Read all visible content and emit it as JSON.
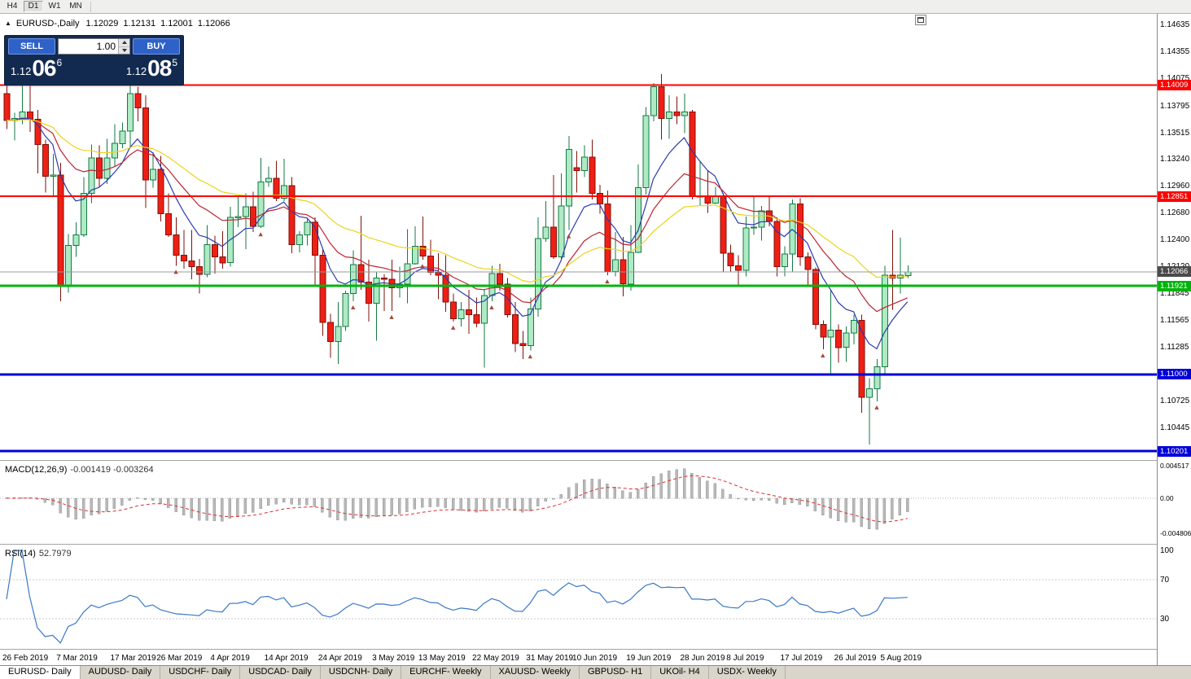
{
  "toolbar": {
    "timeframes": [
      {
        "label": "H4",
        "active": false
      },
      {
        "label": "D1",
        "active": true
      },
      {
        "label": "W1",
        "active": false
      },
      {
        "label": "MN",
        "active": false
      }
    ]
  },
  "chart_header": {
    "collapse_icon": "▲",
    "symbol_period": "EURUSD-,Daily",
    "open": "1.12029",
    "high": "1.12131",
    "low": "1.12001",
    "close": "1.12066"
  },
  "trade_panel": {
    "sell_label": "SELL",
    "buy_label": "BUY",
    "volume": "1.00",
    "sell_price": {
      "prefix": "1.12",
      "big": "06",
      "sup": "6"
    },
    "buy_price": {
      "prefix": "1.12",
      "big": "08",
      "sup": "5"
    }
  },
  "chart_data": {
    "type": "candlestick",
    "symbol": "EURUSD-",
    "timeframe": "Daily",
    "price_range": {
      "top": 1.1457,
      "bottom": 1.1011
    },
    "colors": {
      "bull_fill": "#aeeac4",
      "bull_stroke": "#157a45",
      "bear_fill": "#f01f14",
      "bear_stroke": "#7e120b",
      "ma_fast": "#2b3aae",
      "ma_mid": "#bb2433",
      "ma_slow": "#ecd31b",
      "resistance": "#ff0000",
      "support_green": "#00b40c",
      "support_blue": "#0000d8",
      "bid_line": "#9a9a9a",
      "bid_box": "#4a4a4a",
      "macd_hist": "#b8b8b8",
      "macd_signal": "#e03030",
      "rsi_line": "#3a78c9"
    },
    "moving_averages": [
      {
        "period": 8,
        "type": "ema",
        "color_key": "ma_fast"
      },
      {
        "period": 17,
        "type": "ema",
        "color_key": "ma_mid"
      },
      {
        "period": 34,
        "type": "ema",
        "color_key": "ma_slow"
      }
    ],
    "levels": [
      {
        "value": 1.14009,
        "label": "1.14009",
        "color": "#ff0000",
        "width": 2
      },
      {
        "value": 1.12851,
        "label": "1.12851",
        "color": "#ff0000",
        "width": 2
      },
      {
        "value": 1.11921,
        "label": "1.11921",
        "color": "#00b40c",
        "width": 3
      },
      {
        "value": 1.11,
        "label": "1.11000",
        "color": "#0000d8",
        "width": 3
      },
      {
        "value": 1.10201,
        "label": "1.10201",
        "color": "#0000d8",
        "width": 3
      }
    ],
    "current_price": {
      "value": 1.12066,
      "label": "1.12066"
    },
    "price_axis_ticks": [
      "1.14635",
      "1.14355",
      "1.14075",
      "1.13795",
      "1.13515",
      "1.13240",
      "1.12960",
      "1.12680",
      "1.12400",
      "1.12120",
      "1.11845",
      "1.11565",
      "1.11285",
      "1.10725",
      "1.10445"
    ],
    "x_axis_labels": [
      {
        "text": "26 Feb 2019",
        "index": 0
      },
      {
        "text": "7 Mar 2019",
        "index": 7
      },
      {
        "text": "17 Mar 2019",
        "index": 14
      },
      {
        "text": "26 Mar 2019",
        "index": 20
      },
      {
        "text": "4 Apr 2019",
        "index": 27
      },
      {
        "text": "14 Apr 2019",
        "index": 34
      },
      {
        "text": "24 Apr 2019",
        "index": 41
      },
      {
        "text": "3 May 2019",
        "index": 48
      },
      {
        "text": "13 May 2019",
        "index": 54
      },
      {
        "text": "22 May 2019",
        "index": 61
      },
      {
        "text": "31 May 2019",
        "index": 68
      },
      {
        "text": "10 Jun 2019",
        "index": 74
      },
      {
        "text": "19 Jun 2019",
        "index": 81
      },
      {
        "text": "28 Jun 2019",
        "index": 88
      },
      {
        "text": "8 Jul 2019",
        "index": 94
      },
      {
        "text": "17 Jul 2019",
        "index": 101
      },
      {
        "text": "26 Jul 2019",
        "index": 108
      },
      {
        "text": "5 Aug 2019",
        "index": 114
      }
    ],
    "markers": [
      22,
      33,
      45,
      50,
      54,
      58,
      63,
      68,
      73,
      78,
      106,
      113
    ],
    "candles": [
      [
        1.1392,
        1.1403,
        1.1355,
        1.1364
      ],
      [
        1.1364,
        1.1372,
        1.1343,
        1.1366
      ],
      [
        1.1366,
        1.1409,
        1.136,
        1.1373
      ],
      [
        1.1373,
        1.1408,
        1.1352,
        1.1365
      ],
      [
        1.1365,
        1.1375,
        1.1309,
        1.1339
      ],
      [
        1.1339,
        1.1344,
        1.1289,
        1.1306
      ],
      [
        1.1306,
        1.1329,
        1.1285,
        1.1307
      ],
      [
        1.1307,
        1.132,
        1.1176,
        1.1193
      ],
      [
        1.1193,
        1.1246,
        1.1185,
        1.1234
      ],
      [
        1.1234,
        1.1258,
        1.1222,
        1.1245
      ],
      [
        1.1245,
        1.1305,
        1.1243,
        1.1288
      ],
      [
        1.1288,
        1.1339,
        1.1278,
        1.1325
      ],
      [
        1.1325,
        1.1338,
        1.1294,
        1.1304
      ],
      [
        1.1304,
        1.1345,
        1.1298,
        1.1325
      ],
      [
        1.1325,
        1.136,
        1.1316,
        1.134
      ],
      [
        1.134,
        1.1362,
        1.1335,
        1.1353
      ],
      [
        1.1353,
        1.1403,
        1.1335,
        1.1392
      ],
      [
        1.1392,
        1.1399,
        1.1363,
        1.1377
      ],
      [
        1.1377,
        1.139,
        1.1273,
        1.1302
      ],
      [
        1.1302,
        1.1331,
        1.1294,
        1.1313
      ],
      [
        1.1313,
        1.1327,
        1.1259,
        1.1267
      ],
      [
        1.1267,
        1.1288,
        1.1243,
        1.1245
      ],
      [
        1.1245,
        1.1263,
        1.1213,
        1.1224
      ],
      [
        1.1224,
        1.125,
        1.121,
        1.1218
      ],
      [
        1.1218,
        1.125,
        1.1199,
        1.1212
      ],
      [
        1.1212,
        1.122,
        1.1184,
        1.1204
      ],
      [
        1.1204,
        1.1255,
        1.1201,
        1.1235
      ],
      [
        1.1235,
        1.1244,
        1.1205,
        1.1222
      ],
      [
        1.1222,
        1.1249,
        1.121,
        1.1216
      ],
      [
        1.1216,
        1.1274,
        1.1212,
        1.1263
      ],
      [
        1.1263,
        1.1285,
        1.1253,
        1.1264
      ],
      [
        1.1264,
        1.1288,
        1.123,
        1.1274
      ],
      [
        1.1274,
        1.129,
        1.1248,
        1.1254
      ],
      [
        1.1254,
        1.1325,
        1.1252,
        1.13
      ],
      [
        1.13,
        1.1316,
        1.1295,
        1.1304
      ],
      [
        1.1304,
        1.1322,
        1.128,
        1.1283
      ],
      [
        1.1283,
        1.1324,
        1.128,
        1.1296
      ],
      [
        1.1296,
        1.1305,
        1.1226,
        1.1235
      ],
      [
        1.1235,
        1.1249,
        1.1227,
        1.1245
      ],
      [
        1.1245,
        1.1262,
        1.1234,
        1.1258
      ],
      [
        1.1258,
        1.1263,
        1.1192,
        1.1224
      ],
      [
        1.1224,
        1.123,
        1.114,
        1.1154
      ],
      [
        1.1154,
        1.1163,
        1.1117,
        1.1134
      ],
      [
        1.1134,
        1.1175,
        1.1111,
        1.115
      ],
      [
        1.115,
        1.1187,
        1.1145,
        1.1184
      ],
      [
        1.1184,
        1.1229,
        1.1176,
        1.1214
      ],
      [
        1.1214,
        1.1265,
        1.1188,
        1.1196
      ],
      [
        1.1196,
        1.1219,
        1.1155,
        1.1174
      ],
      [
        1.1174,
        1.1206,
        1.1135,
        1.12
      ],
      [
        1.12,
        1.1204,
        1.1166,
        1.1199
      ],
      [
        1.1199,
        1.1219,
        1.1166,
        1.119
      ],
      [
        1.119,
        1.1212,
        1.118,
        1.1194
      ],
      [
        1.1194,
        1.1251,
        1.1174,
        1.1215
      ],
      [
        1.1215,
        1.1254,
        1.1214,
        1.1233
      ],
      [
        1.1233,
        1.1264,
        1.1219,
        1.1223
      ],
      [
        1.1223,
        1.124,
        1.1203,
        1.1206
      ],
      [
        1.1206,
        1.1226,
        1.1178,
        1.1203
      ],
      [
        1.1203,
        1.1224,
        1.1165,
        1.1175
      ],
      [
        1.1175,
        1.1184,
        1.1155,
        1.1158
      ],
      [
        1.1158,
        1.1175,
        1.115,
        1.1167
      ],
      [
        1.1167,
        1.1188,
        1.1142,
        1.1162
      ],
      [
        1.1162,
        1.118,
        1.1149,
        1.1153
      ],
      [
        1.1153,
        1.1188,
        1.1107,
        1.1182
      ],
      [
        1.1182,
        1.1213,
        1.1176,
        1.1205
      ],
      [
        1.1205,
        1.1215,
        1.1187,
        1.1194
      ],
      [
        1.1194,
        1.12,
        1.1159,
        1.1162
      ],
      [
        1.1162,
        1.1175,
        1.1123,
        1.1132
      ],
      [
        1.1132,
        1.1145,
        1.1116,
        1.113
      ],
      [
        1.113,
        1.118,
        1.1125,
        1.1168
      ],
      [
        1.1168,
        1.1263,
        1.116,
        1.1241
      ],
      [
        1.1241,
        1.128,
        1.1238,
        1.1253
      ],
      [
        1.1253,
        1.1307,
        1.122,
        1.1222
      ],
      [
        1.1222,
        1.1309,
        1.122,
        1.1275
      ],
      [
        1.1275,
        1.1348,
        1.125,
        1.1334
      ],
      [
        1.1315,
        1.1332,
        1.1289,
        1.1312
      ],
      [
        1.1312,
        1.1338,
        1.1305,
        1.1326
      ],
      [
        1.1326,
        1.1344,
        1.1282,
        1.1288
      ],
      [
        1.1288,
        1.1297,
        1.1267,
        1.1277
      ],
      [
        1.1277,
        1.1291,
        1.1203,
        1.1207
      ],
      [
        1.1207,
        1.1248,
        1.1202,
        1.1219
      ],
      [
        1.1219,
        1.1243,
        1.1181,
        1.1194
      ],
      [
        1.1194,
        1.1255,
        1.1187,
        1.1227
      ],
      [
        1.1227,
        1.1318,
        1.1226,
        1.1294
      ],
      [
        1.1294,
        1.1378,
        1.1287,
        1.1369
      ],
      [
        1.1369,
        1.1403,
        1.1363,
        1.1399
      ],
      [
        1.1399,
        1.1412,
        1.1344,
        1.1366
      ],
      [
        1.1366,
        1.139,
        1.1345,
        1.1373
      ],
      [
        1.1373,
        1.1389,
        1.136,
        1.1369
      ],
      [
        1.1369,
        1.1392,
        1.1351,
        1.1373
      ],
      [
        1.1373,
        1.1375,
        1.1282,
        1.1285
      ],
      [
        1.1285,
        1.1322,
        1.1275,
        1.1285
      ],
      [
        1.1285,
        1.1312,
        1.1268,
        1.1278
      ],
      [
        1.1278,
        1.1295,
        1.1277,
        1.1285
      ],
      [
        1.1285,
        1.1288,
        1.1207,
        1.1226
      ],
      [
        1.1226,
        1.1235,
        1.1206,
        1.1213
      ],
      [
        1.1213,
        1.1224,
        1.1193,
        1.1208
      ],
      [
        1.1208,
        1.1264,
        1.1202,
        1.1252
      ],
      [
        1.1252,
        1.1285,
        1.1245,
        1.1253
      ],
      [
        1.1253,
        1.1275,
        1.1239,
        1.127
      ],
      [
        1.127,
        1.1285,
        1.1254,
        1.1259
      ],
      [
        1.1259,
        1.1263,
        1.1202,
        1.1212
      ],
      [
        1.1212,
        1.1233,
        1.1202,
        1.1225
      ],
      [
        1.1225,
        1.1282,
        1.1206,
        1.1277
      ],
      [
        1.1277,
        1.1283,
        1.1213,
        1.1222
      ],
      [
        1.1222,
        1.1227,
        1.1192,
        1.1209
      ],
      [
        1.1209,
        1.1211,
        1.1147,
        1.1152
      ],
      [
        1.1152,
        1.1156,
        1.1126,
        1.1139
      ],
      [
        1.1139,
        1.1188,
        1.1101,
        1.1146
      ],
      [
        1.1146,
        1.1152,
        1.1112,
        1.1128
      ],
      [
        1.1128,
        1.115,
        1.1113,
        1.1143
      ],
      [
        1.1143,
        1.1162,
        1.1131,
        1.1156
      ],
      [
        1.1156,
        1.1162,
        1.106,
        1.1076
      ],
      [
        1.1076,
        1.1096,
        1.1027,
        1.1085
      ],
      [
        1.1085,
        1.1116,
        1.1072,
        1.1108
      ],
      [
        1.1108,
        1.1213,
        1.1101,
        1.1203
      ],
      [
        1.1203,
        1.125,
        1.1167,
        1.12
      ],
      [
        1.12,
        1.1242,
        1.1184,
        1.1203
      ],
      [
        1.12029,
        1.12131,
        1.12001,
        1.12066
      ]
    ],
    "indicators": {
      "macd": {
        "label": "MACD(12,26,9)",
        "value_main": "-0.001419",
        "value_signal": "-0.003264",
        "params": [
          12,
          26,
          9
        ],
        "axis": [
          {
            "label": "0.004517",
            "value": 0.004517
          },
          {
            "label": "0.00",
            "value": 0
          },
          {
            "label": "-0.004806",
            "value": -0.004806
          }
        ]
      },
      "rsi": {
        "label": "RSI(14)",
        "value": "52.7979",
        "period": 14,
        "levels": [
          70,
          30
        ],
        "axis": [
          {
            "label": "100",
            "value": 100
          },
          {
            "label": "70",
            "value": 70
          },
          {
            "label": "30",
            "value": 30
          }
        ]
      }
    }
  },
  "tabs": [
    {
      "label": "EURUSD- Daily",
      "active": true
    },
    {
      "label": "AUDUSD- Daily",
      "active": false
    },
    {
      "label": "USDCHF- Daily",
      "active": false
    },
    {
      "label": "USDCAD- Daily",
      "active": false
    },
    {
      "label": "USDCNH- Daily",
      "active": false
    },
    {
      "label": "EURCHF- Weekly",
      "active": false
    },
    {
      "label": "XAUUSD- Weekly",
      "active": false
    },
    {
      "label": "GBPUSD- H1",
      "active": false
    },
    {
      "label": "UKOil- H4",
      "active": false
    },
    {
      "label": "USDX- Weekly",
      "active": false
    }
  ]
}
